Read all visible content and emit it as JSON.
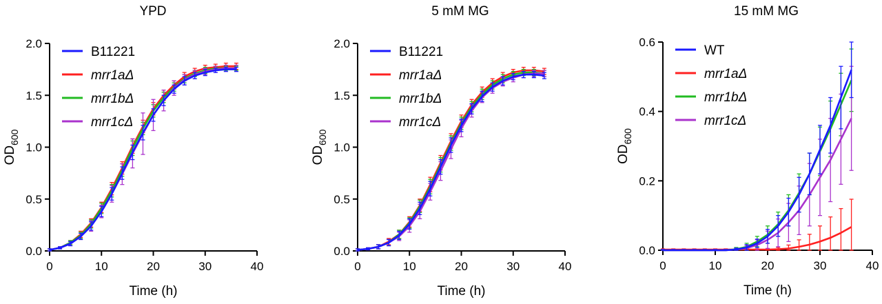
{
  "chart_data": [
    {
      "type": "line",
      "title": "YPD",
      "xlabel": "Time (h)",
      "ylabel": "OD",
      "ylabel_sub": "600",
      "xlim": [
        0,
        40
      ],
      "ylim": [
        0,
        2.0
      ],
      "xticks": [
        0,
        10,
        20,
        30,
        40
      ],
      "yticks": [
        0.0,
        0.5,
        1.0,
        1.5,
        2.0
      ],
      "ytick_labels": [
        "0.0",
        "0.5",
        "1.0",
        "1.5",
        "2.0"
      ],
      "legend_position": "top-left",
      "x": [
        0,
        2,
        4,
        6,
        8,
        10,
        12,
        14,
        16,
        18,
        20,
        22,
        24,
        26,
        28,
        30,
        32,
        34,
        36
      ],
      "series": [
        {
          "name": "B11221",
          "italic": false,
          "color": "#1a1aff",
          "values": [
            0.01,
            0.03,
            0.07,
            0.14,
            0.24,
            0.38,
            0.55,
            0.75,
            0.95,
            1.14,
            1.31,
            1.45,
            1.56,
            1.64,
            1.69,
            1.72,
            1.74,
            1.75,
            1.75
          ],
          "errors": [
            0.01,
            0.01,
            0.02,
            0.03,
            0.04,
            0.05,
            0.06,
            0.06,
            0.07,
            0.07,
            0.06,
            0.05,
            0.04,
            0.04,
            0.03,
            0.03,
            0.02,
            0.02,
            0.02
          ]
        },
        {
          "name": "mrr1aΔ",
          "italic": true,
          "color": "#ff2020",
          "values": [
            0.01,
            0.03,
            0.08,
            0.16,
            0.27,
            0.42,
            0.6,
            0.8,
            1.01,
            1.2,
            1.37,
            1.5,
            1.6,
            1.68,
            1.73,
            1.76,
            1.77,
            1.78,
            1.78
          ],
          "errors": [
            0.01,
            0.01,
            0.02,
            0.03,
            0.04,
            0.05,
            0.06,
            0.06,
            0.07,
            0.06,
            0.06,
            0.05,
            0.04,
            0.04,
            0.03,
            0.03,
            0.03,
            0.03,
            0.03
          ]
        },
        {
          "name": "mrr1bΔ",
          "italic": true,
          "color": "#22bb22",
          "values": [
            0.01,
            0.03,
            0.08,
            0.15,
            0.26,
            0.41,
            0.58,
            0.78,
            0.99,
            1.18,
            1.35,
            1.48,
            1.58,
            1.66,
            1.71,
            1.74,
            1.76,
            1.76,
            1.76
          ],
          "errors": [
            0.01,
            0.01,
            0.02,
            0.03,
            0.04,
            0.05,
            0.06,
            0.06,
            0.07,
            0.06,
            0.06,
            0.05,
            0.04,
            0.04,
            0.03,
            0.03,
            0.02,
            0.02,
            0.02
          ]
        },
        {
          "name": "mrr1cΔ",
          "italic": true,
          "color": "#aa33cc",
          "values": [
            0.01,
            0.03,
            0.07,
            0.14,
            0.24,
            0.38,
            0.55,
            0.74,
            0.94,
            1.13,
            1.31,
            1.45,
            1.57,
            1.65,
            1.7,
            1.73,
            1.75,
            1.76,
            1.76
          ],
          "errors": [
            0.01,
            0.01,
            0.02,
            0.03,
            0.05,
            0.06,
            0.08,
            0.1,
            0.14,
            0.2,
            0.15,
            0.1,
            0.07,
            0.05,
            0.04,
            0.03,
            0.03,
            0.03,
            0.03
          ]
        }
      ]
    },
    {
      "type": "line",
      "title": "5 mM MG",
      "xlabel": "Time (h)",
      "ylabel": "OD",
      "ylabel_sub": "600",
      "xlim": [
        0,
        40
      ],
      "ylim": [
        0,
        2.0
      ],
      "xticks": [
        0,
        10,
        20,
        30,
        40
      ],
      "yticks": [
        0.0,
        0.5,
        1.0,
        1.5,
        2.0
      ],
      "ytick_labels": [
        "0.0",
        "0.5",
        "1.0",
        "1.5",
        "2.0"
      ],
      "legend_position": "top-left",
      "x": [
        0,
        2,
        4,
        6,
        8,
        10,
        12,
        14,
        16,
        18,
        20,
        22,
        24,
        26,
        28,
        30,
        32,
        34,
        36
      ],
      "series": [
        {
          "name": "B11221",
          "italic": false,
          "color": "#1a1aff",
          "values": [
            0.01,
            0.02,
            0.04,
            0.08,
            0.15,
            0.26,
            0.41,
            0.6,
            0.81,
            1.02,
            1.21,
            1.37,
            1.49,
            1.58,
            1.64,
            1.68,
            1.7,
            1.7,
            1.69
          ],
          "errors": [
            0.01,
            0.01,
            0.02,
            0.03,
            0.04,
            0.05,
            0.06,
            0.07,
            0.07,
            0.07,
            0.06,
            0.05,
            0.05,
            0.04,
            0.04,
            0.03,
            0.03,
            0.03,
            0.03
          ]
        },
        {
          "name": "mrr1aΔ",
          "italic": true,
          "color": "#ff2020",
          "values": [
            0.01,
            0.02,
            0.04,
            0.09,
            0.16,
            0.28,
            0.44,
            0.64,
            0.85,
            1.06,
            1.25,
            1.41,
            1.53,
            1.62,
            1.68,
            1.72,
            1.74,
            1.74,
            1.73
          ],
          "errors": [
            0.01,
            0.01,
            0.02,
            0.03,
            0.04,
            0.05,
            0.06,
            0.07,
            0.07,
            0.07,
            0.06,
            0.05,
            0.05,
            0.04,
            0.04,
            0.03,
            0.03,
            0.03,
            0.03
          ]
        },
        {
          "name": "mrr1bΔ",
          "italic": true,
          "color": "#22bb22",
          "values": [
            0.01,
            0.02,
            0.04,
            0.08,
            0.16,
            0.27,
            0.43,
            0.62,
            0.83,
            1.04,
            1.23,
            1.39,
            1.51,
            1.6,
            1.66,
            1.7,
            1.72,
            1.72,
            1.71
          ],
          "errors": [
            0.01,
            0.01,
            0.02,
            0.03,
            0.04,
            0.05,
            0.06,
            0.07,
            0.07,
            0.07,
            0.06,
            0.05,
            0.05,
            0.04,
            0.04,
            0.03,
            0.03,
            0.03,
            0.03
          ]
        },
        {
          "name": "mrr1cΔ",
          "italic": true,
          "color": "#aa33cc",
          "values": [
            0.01,
            0.02,
            0.04,
            0.08,
            0.14,
            0.24,
            0.38,
            0.57,
            0.77,
            0.98,
            1.18,
            1.35,
            1.48,
            1.57,
            1.63,
            1.67,
            1.7,
            1.71,
            1.71
          ],
          "errors": [
            0.01,
            0.01,
            0.02,
            0.03,
            0.04,
            0.06,
            0.07,
            0.08,
            0.09,
            0.09,
            0.08,
            0.06,
            0.05,
            0.05,
            0.04,
            0.04,
            0.03,
            0.03,
            0.03
          ]
        }
      ]
    },
    {
      "type": "line",
      "title": "15 mM MG",
      "xlabel": "Time (h)",
      "ylabel": "OD",
      "ylabel_sub": "600",
      "xlim": [
        0,
        40
      ],
      "ylim": [
        0,
        0.6
      ],
      "xticks": [
        0,
        10,
        20,
        30,
        40
      ],
      "yticks": [
        0.0,
        0.2,
        0.4,
        0.6
      ],
      "ytick_labels": [
        "0.0",
        "0.2",
        "0.4",
        "0.6"
      ],
      "legend_position": "top-left",
      "x": [
        0,
        2,
        4,
        6,
        8,
        10,
        12,
        14,
        16,
        18,
        20,
        22,
        24,
        26,
        28,
        30,
        32,
        34,
        36
      ],
      "series": [
        {
          "name": "WT",
          "italic": false,
          "color": "#1a1aff",
          "values": [
            0.0,
            0.0,
            0.0,
            0.0,
            0.0,
            0.0,
            0.0,
            0.002,
            0.008,
            0.02,
            0.04,
            0.07,
            0.11,
            0.16,
            0.22,
            0.29,
            0.36,
            0.44,
            0.52
          ],
          "errors": [
            0.002,
            0.002,
            0.002,
            0.002,
            0.002,
            0.002,
            0.002,
            0.004,
            0.008,
            0.012,
            0.02,
            0.03,
            0.04,
            0.05,
            0.06,
            0.07,
            0.08,
            0.09,
            0.08
          ]
        },
        {
          "name": "mrr1aΔ",
          "italic": true,
          "color": "#ff2020",
          "values": [
            0.002,
            0.002,
            0.002,
            0.002,
            0.002,
            0.002,
            0.002,
            0.002,
            0.002,
            0.002,
            0.002,
            0.003,
            0.005,
            0.01,
            0.016,
            0.025,
            0.036,
            0.05,
            0.067
          ],
          "errors": [
            0.002,
            0.002,
            0.002,
            0.002,
            0.002,
            0.002,
            0.002,
            0.002,
            0.002,
            0.002,
            0.003,
            0.005,
            0.01,
            0.02,
            0.03,
            0.045,
            0.06,
            0.07,
            0.08
          ]
        },
        {
          "name": "mrr1bΔ",
          "italic": true,
          "color": "#22bb22",
          "values": [
            0.0,
            0.0,
            0.0,
            0.0,
            0.0,
            0.0,
            0.0,
            0.003,
            0.01,
            0.025,
            0.045,
            0.075,
            0.115,
            0.165,
            0.22,
            0.285,
            0.35,
            0.42,
            0.49
          ],
          "errors": [
            0.002,
            0.002,
            0.002,
            0.002,
            0.002,
            0.002,
            0.002,
            0.005,
            0.01,
            0.015,
            0.025,
            0.035,
            0.045,
            0.055,
            0.06,
            0.07,
            0.08,
            0.09,
            0.09
          ]
        },
        {
          "name": "mrr1cΔ",
          "italic": true,
          "color": "#aa33cc",
          "values": [
            0.0,
            0.0,
            0.0,
            0.0,
            0.0,
            0.0,
            0.0,
            0.002,
            0.006,
            0.015,
            0.03,
            0.05,
            0.08,
            0.115,
            0.16,
            0.21,
            0.26,
            0.32,
            0.38
          ],
          "errors": [
            0.002,
            0.002,
            0.002,
            0.002,
            0.002,
            0.002,
            0.002,
            0.004,
            0.008,
            0.015,
            0.025,
            0.04,
            0.055,
            0.07,
            0.09,
            0.11,
            0.12,
            0.13,
            0.15
          ]
        }
      ]
    }
  ]
}
